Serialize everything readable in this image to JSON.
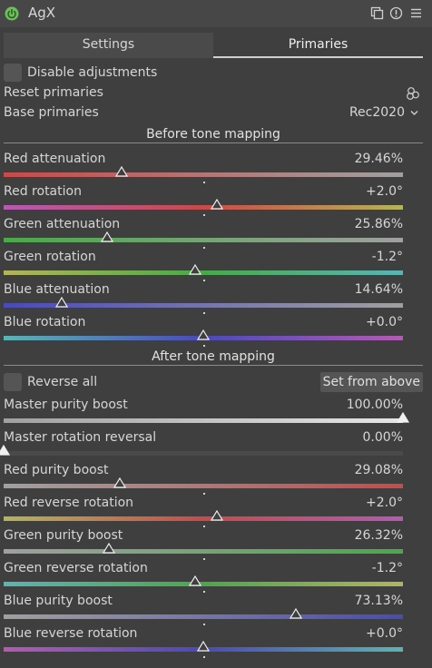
{
  "header": {
    "title": "AgX"
  },
  "tabs": [
    {
      "label": "Settings"
    },
    {
      "label": "Primaries"
    }
  ],
  "disable_adjustments": {
    "label": "Disable adjustments",
    "checked": false
  },
  "reset_primaries": {
    "label": "Reset primaries"
  },
  "base_primaries": {
    "label": "Base primaries",
    "value": "Rec2020"
  },
  "sections": {
    "before": "Before tone mapping",
    "after": "After tone mapping"
  },
  "reverse_all": {
    "label": "Reverse all",
    "checked": false
  },
  "set_from_above": {
    "label": "Set from above"
  },
  "colors": {
    "red": "#c84a4a",
    "green": "#4aa84a",
    "blue": "#4a4ab8",
    "magenta": "#b45ab4",
    "yellow": "#b4b45a",
    "cyan": "#5ab4b4",
    "gray": "#a0a0a0",
    "white": "#e6e6e6"
  },
  "sliders_before": [
    {
      "label": "Red attenuation",
      "value": "29.46%",
      "level": 0.2946,
      "gradient": [
        "#c84a4a",
        "#a0a0a0"
      ]
    },
    {
      "label": "Red rotation",
      "value": "+2.0°",
      "level": 0.533,
      "gradient": [
        "#b45ab4",
        "#c84a4a",
        "#b4b45a"
      ]
    },
    {
      "label": "Green attenuation",
      "value": "25.86%",
      "level": 0.2586,
      "gradient": [
        "#4aa84a",
        "#a0a0a0"
      ]
    },
    {
      "label": "Green rotation",
      "value": "-1.2°",
      "level": 0.48,
      "gradient": [
        "#b4b45a",
        "#4aa84a",
        "#5ab4b4"
      ]
    },
    {
      "label": "Blue attenuation",
      "value": "14.64%",
      "level": 0.1464,
      "gradient": [
        "#4a4ab8",
        "#a0a0a0"
      ]
    },
    {
      "label": "Blue rotation",
      "value": "+0.0°",
      "level": 0.5,
      "gradient": [
        "#5ab4b4",
        "#4a4ab8",
        "#b45ab4"
      ]
    }
  ],
  "sliders_after": [
    {
      "label": "Master purity boost",
      "value": "100.00%",
      "level": 1.0,
      "gradient": [
        "#a0a0a0",
        "#e6e6e6"
      ],
      "ticked": false
    },
    {
      "label": "Master rotation reversal",
      "value": "0.00%",
      "level": 0.0,
      "gradient": [
        "#4a4a4a",
        "#4a4a4a"
      ],
      "ticked": false
    },
    {
      "label": "Red purity boost",
      "value": "29.08%",
      "level": 0.2908,
      "gradient": [
        "#a0a0a0",
        "#c84a4a"
      ]
    },
    {
      "label": "Red reverse rotation",
      "value": "+2.0°",
      "level": 0.533,
      "gradient": [
        "#b4b45a",
        "#c84a4a",
        "#b45ab4"
      ]
    },
    {
      "label": "Green purity boost",
      "value": "26.32%",
      "level": 0.2632,
      "gradient": [
        "#a0a0a0",
        "#4aa84a"
      ]
    },
    {
      "label": "Green reverse rotation",
      "value": "-1.2°",
      "level": 0.48,
      "gradient": [
        "#5ab4b4",
        "#4aa84a",
        "#b4b45a"
      ]
    },
    {
      "label": "Blue purity boost",
      "value": "73.13%",
      "level": 0.7313,
      "gradient": [
        "#a0a0a0",
        "#4a4ab8"
      ]
    },
    {
      "label": "Blue reverse rotation",
      "value": "+0.0°",
      "level": 0.5,
      "gradient": [
        "#b45ab4",
        "#4a4ab8",
        "#5ab4b4"
      ]
    }
  ]
}
